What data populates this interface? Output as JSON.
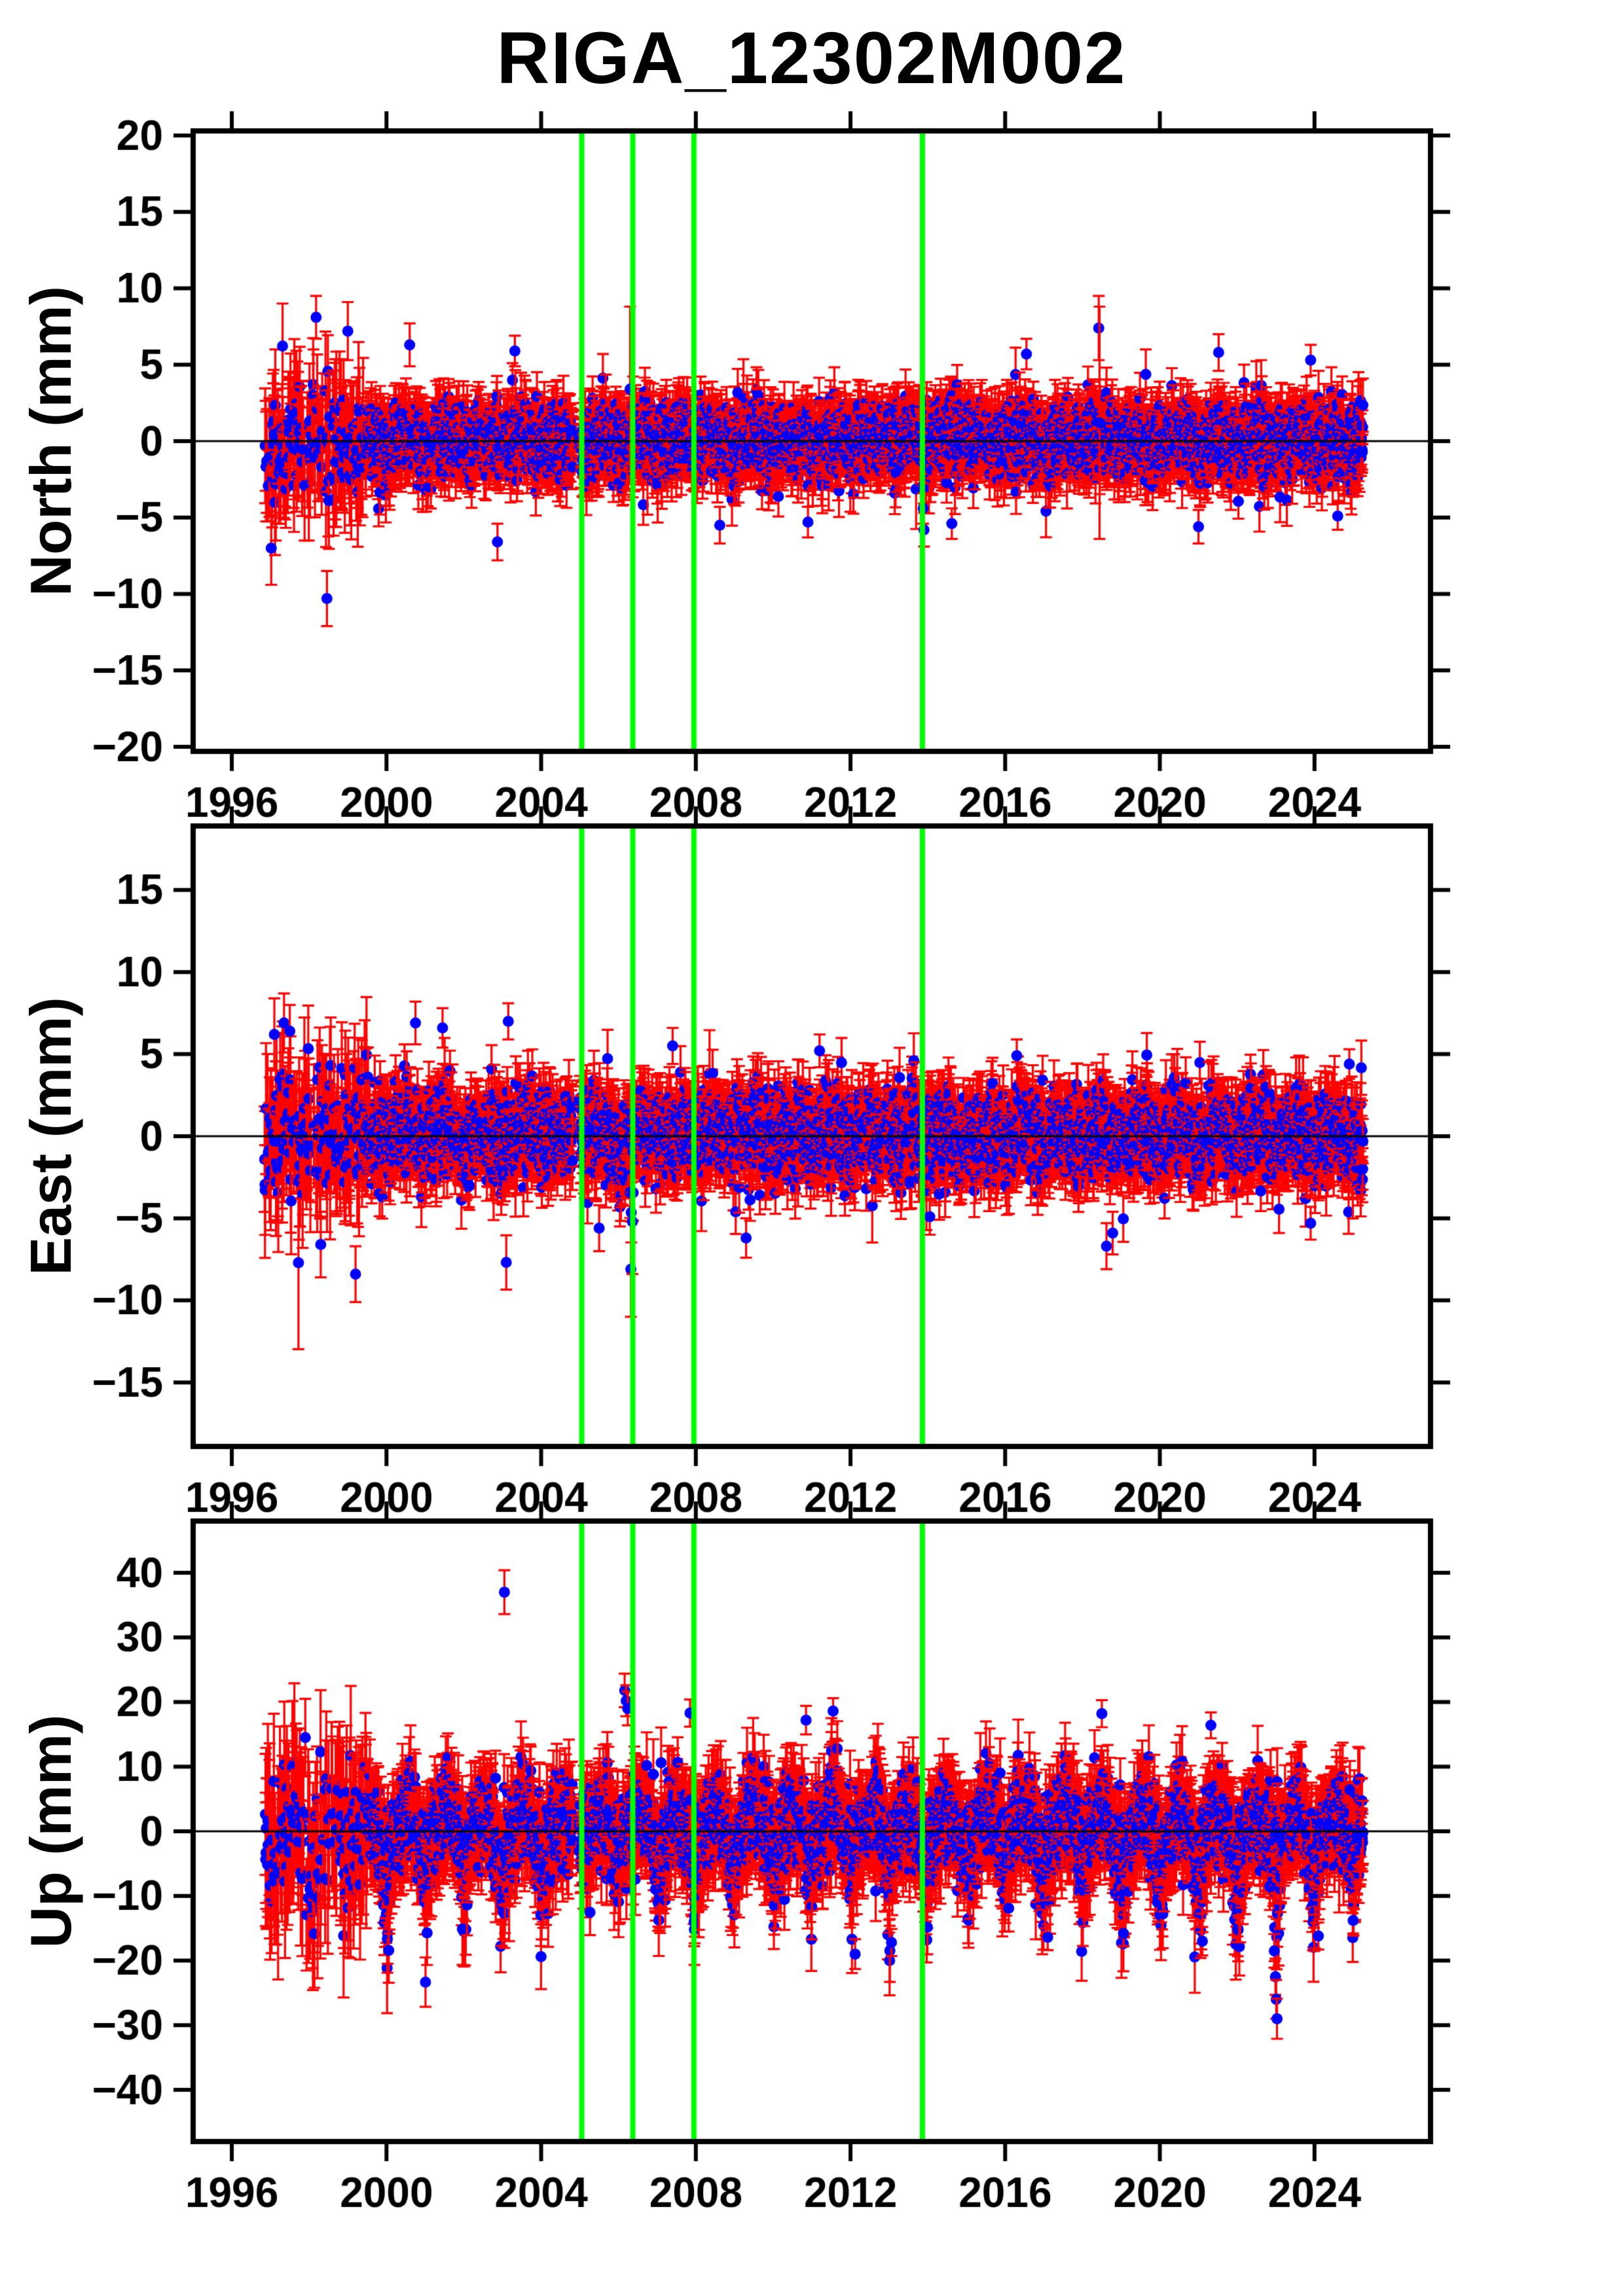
{
  "title": "RIGA_12302M002",
  "colors": {
    "background": "#ffffff",
    "axis": "#000000",
    "point": "#0000ff",
    "error_bar": "#ff0000",
    "event_line": "#00ff00",
    "zero_line": "#000000"
  },
  "x_axis": {
    "lim": [
      1995.0,
      2027.0
    ],
    "ticks": [
      1996,
      2000,
      2004,
      2008,
      2012,
      2016,
      2020,
      2024
    ],
    "tick_labels": [
      "1996",
      "2000",
      "2004",
      "2008",
      "2012",
      "2016",
      "2020",
      "2024"
    ]
  },
  "event_lines": {
    "color": "#00ff00",
    "x_values": [
      2005.05,
      2006.37,
      2007.95,
      2013.86
    ]
  },
  "sampling": {
    "data_start": 1996.85,
    "data_end": 2025.25,
    "points_per_year": 150,
    "early_until": 1999.5,
    "early_keep": 0.38,
    "gaps": [
      [
        2004.82,
        2005.0
      ]
    ],
    "seed": 20240917
  },
  "chart_data": [
    {
      "type": "scatter",
      "id": "north",
      "ylabel": "North (mm)",
      "units": "mm",
      "ylim": [
        -20.3,
        20.3
      ],
      "yticks": [
        20,
        15,
        10,
        5,
        0,
        -5,
        -10,
        -15,
        -20
      ],
      "noise": {
        "sigma": 1.15,
        "sigma_early": 1.95,
        "annual_amp": 0.3,
        "annual_phase": 0.54,
        "outlier_prob": 0.012,
        "outlier_scale": 1.8
      },
      "errorbar": {
        "base": 1.1,
        "spread": 0.7,
        "early_base": 2.3,
        "early_spread": 1.6
      },
      "outliers": [
        [
          1997.02,
          -7.0,
          2.4
        ],
        [
          1998.18,
          8.1,
          1.4
        ],
        [
          1998.46,
          -10.3,
          1.8
        ],
        [
          1999.0,
          7.2,
          1.9
        ],
        [
          2000.6,
          6.3,
          1.4
        ],
        [
          2002.87,
          -6.6,
          1.2
        ],
        [
          2003.32,
          5.9,
          1.0
        ],
        [
          2006.3,
          3.4,
          5.4
        ],
        [
          2008.62,
          -5.5,
          1.2
        ],
        [
          2010.9,
          -5.3,
          1.0
        ],
        [
          2013.9,
          -5.8,
          1.1
        ],
        [
          2013.88,
          -4.4,
          1.0
        ],
        [
          2014.62,
          -5.4,
          1.0
        ],
        [
          2016.55,
          5.7,
          1.0
        ],
        [
          2018.42,
          7.4,
          2.1
        ],
        [
          2018.44,
          1.2,
          7.6
        ],
        [
          2021.0,
          -5.6,
          1.1
        ],
        [
          2021.52,
          5.8,
          1.2
        ],
        [
          2023.9,
          5.3,
          1.0
        ],
        [
          2024.6,
          -4.9,
          0.9
        ]
      ]
    },
    {
      "type": "scatter",
      "id": "east",
      "ylabel": "East (mm)",
      "units": "mm",
      "ylim": [
        -18.9,
        18.9
      ],
      "yticks": [
        15,
        10,
        5,
        0,
        -5,
        -10,
        -15
      ],
      "noise": {
        "sigma": 1.3,
        "sigma_early": 2.1,
        "annual_amp": 0.3,
        "annual_phase": 0.54,
        "outlier_prob": 0.02,
        "outlier_scale": 1.7
      },
      "errorbar": {
        "base": 1.15,
        "spread": 0.7,
        "early_base": 2.4,
        "early_spread": 1.6
      },
      "outliers": [
        [
          1997.1,
          6.2,
          2.2
        ],
        [
          1997.35,
          6.9,
          1.8
        ],
        [
          1997.5,
          6.4,
          1.6
        ],
        [
          1998.3,
          -6.6,
          2.0
        ],
        [
          1999.2,
          -8.4,
          1.7
        ],
        [
          2000.75,
          6.9,
          1.3
        ],
        [
          2001.45,
          6.6,
          1.2
        ],
        [
          2003.15,
          7.0,
          1.1
        ],
        [
          2005.5,
          -5.6,
          1.4
        ],
        [
          2006.32,
          -8.1,
          2.9
        ],
        [
          2006.36,
          -5.2,
          3.2
        ],
        [
          2007.4,
          5.5,
          1.1
        ],
        [
          2009.3,
          -6.2,
          1.2
        ],
        [
          2011.2,
          5.2,
          1.0
        ],
        [
          2014.05,
          -4.9,
          1.1
        ],
        [
          2016.3,
          4.9,
          1.0
        ],
        [
          2018.62,
          -6.7,
          1.4
        ],
        [
          2018.78,
          -5.9,
          1.3
        ],
        [
          2023.9,
          -5.3,
          1.0
        ],
        [
          2024.9,
          4.4,
          0.9
        ]
      ]
    },
    {
      "type": "scatter",
      "id": "up",
      "ylabel": "Up (mm)",
      "units": "mm",
      "ylim": [
        -48,
        48
      ],
      "yticks": [
        40,
        30,
        20,
        10,
        0,
        -10,
        -20,
        -30,
        -40
      ],
      "noise": {
        "sigma": 3.4,
        "sigma_early": 5.2,
        "annual_amp": 2.6,
        "annual_phase": 0.54,
        "outlier_prob": 0.01,
        "outlier_scale": 1.5
      },
      "errorbar": {
        "base": 3.4,
        "spread": 2.2,
        "early_base": 7.5,
        "early_spread": 5.0
      },
      "winter_dips": {
        "trigger": 0.5,
        "base": 2.5,
        "scale": 11,
        "max": 14
      },
      "pos_spikes": {
        "prob": 0.05,
        "scale": 2.5,
        "max": 8
      },
      "outliers": [
        [
          2003.05,
          37.0,
          3.4
        ],
        [
          1997.9,
          14.5,
          6.0
        ],
        [
          2006.16,
          21.8,
          2.6
        ],
        [
          2006.2,
          20.2,
          2.4
        ],
        [
          2006.24,
          19.0,
          2.6
        ],
        [
          2007.85,
          18.3,
          2.1
        ],
        [
          2010.85,
          17.2,
          2.2
        ],
        [
          2011.55,
          18.6,
          2.0
        ],
        [
          2012.12,
          -19.0,
          2.3
        ],
        [
          2013.06,
          -17.2,
          2.1
        ],
        [
          2017.1,
          -16.4,
          2.0
        ],
        [
          2018.5,
          18.2,
          2.1
        ],
        [
          2019.06,
          -15.8,
          2.0
        ],
        [
          2021.32,
          16.4,
          2.0
        ],
        [
          2021.1,
          -17.0,
          2.2
        ],
        [
          2022.96,
          -18.5,
          2.6
        ],
        [
          2022.99,
          -22.5,
          2.8
        ],
        [
          2023.01,
          -26.0,
          3.0
        ],
        [
          2023.03,
          -29.0,
          3.1
        ],
        [
          2024.1,
          -16.2,
          2.1
        ],
        [
          2025.0,
          -13.8,
          2.0
        ]
      ]
    }
  ]
}
